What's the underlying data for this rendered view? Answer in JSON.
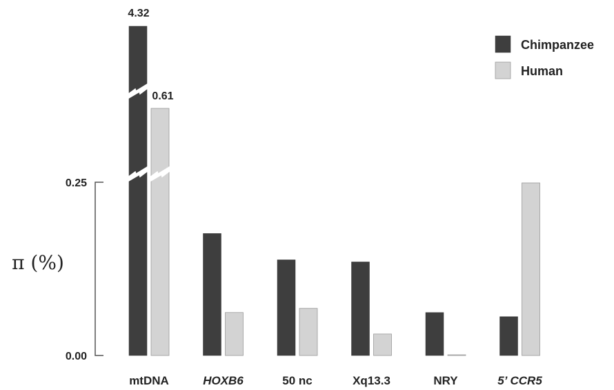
{
  "chart_data": {
    "type": "bar",
    "ylabel": "π (%)",
    "ylim": [
      0,
      0.25
    ],
    "yticks": [
      "0.00",
      "0.25"
    ],
    "axis_break": true,
    "categories": [
      "mtDNA",
      "HOXB6",
      "50 nc",
      "Xq13.3",
      "NRY",
      "5’ CCR5"
    ],
    "italic_categories": [
      "HOXB6",
      "5’ CCR5"
    ],
    "series": [
      {
        "name": "Chimpanzee",
        "color": "#3e3e3e",
        "values": [
          4.32,
          0.176,
          0.138,
          0.135,
          0.062,
          0.056
        ]
      },
      {
        "name": "Human",
        "color": "#d3d3d3",
        "values": [
          0.61,
          0.062,
          0.068,
          0.031,
          0.0005,
          0.249
        ]
      }
    ],
    "data_labels": [
      "4.32",
      "0.61"
    ],
    "legend": {
      "placement": "top-right"
    }
  }
}
